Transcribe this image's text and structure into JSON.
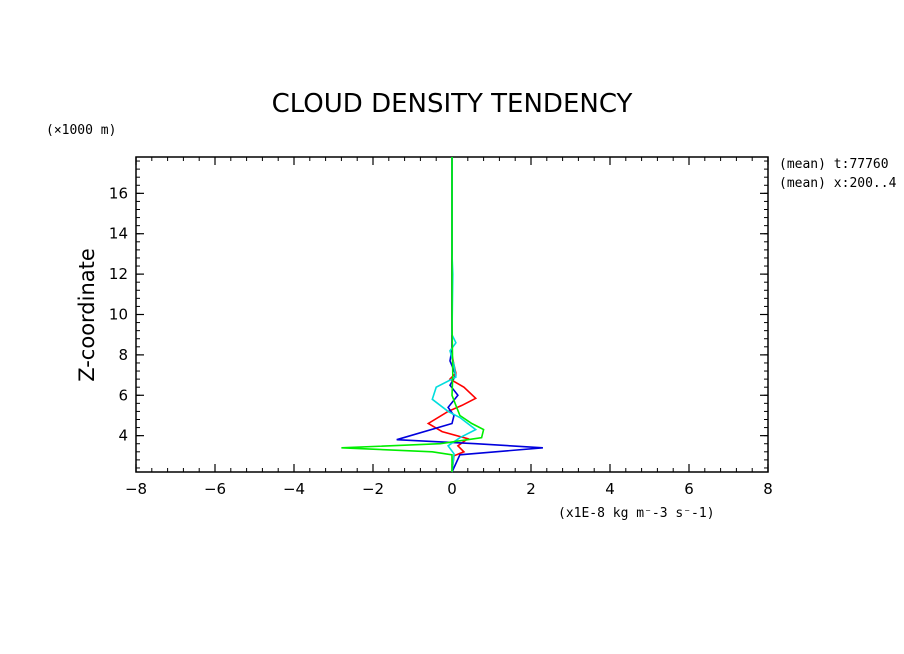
{
  "chart_data": {
    "type": "line",
    "title": "CLOUD DENSITY TENDENCY",
    "ylabel": "Z-coordinate",
    "y_unit": "(×1000 m)",
    "x_unit": "(x1E-8 kg m⁻-3 s⁻-1)",
    "annotations": [
      "(mean) t:77760",
      "(mean) x:200..4"
    ],
    "xlim": [
      -8,
      8
    ],
    "ylim": [
      2.2,
      17.8
    ],
    "x_ticks": [
      "-8",
      "-6",
      "-4",
      "-2",
      "0",
      "2",
      "4",
      "6",
      "8"
    ],
    "y_ticks": [
      "4",
      "6",
      "8",
      "10",
      "12",
      "14",
      "16"
    ],
    "series": [
      {
        "color": "#ff0000",
        "points": [
          [
            0,
            17.8
          ],
          [
            0,
            8.0
          ],
          [
            0.05,
            7.5
          ],
          [
            0.1,
            7.1
          ],
          [
            -0.05,
            6.8
          ],
          [
            0.3,
            6.4
          ],
          [
            0.6,
            5.85
          ],
          [
            0.25,
            5.5
          ],
          [
            -0.1,
            5.2
          ],
          [
            -0.6,
            4.6
          ],
          [
            -0.25,
            4.2
          ],
          [
            0.4,
            3.85
          ],
          [
            0.15,
            3.5
          ],
          [
            0.3,
            3.2
          ],
          [
            0.05,
            3.0
          ],
          [
            0,
            2.2
          ]
        ]
      },
      {
        "color": "#0000dd",
        "points": [
          [
            0,
            17.8
          ],
          [
            0,
            9.0
          ],
          [
            0.0,
            8.3
          ],
          [
            -0.05,
            7.7
          ],
          [
            0.1,
            7.0
          ],
          [
            -0.05,
            6.5
          ],
          [
            0.15,
            6.0
          ],
          [
            -0.1,
            5.4
          ],
          [
            0.05,
            5.0
          ],
          [
            0.0,
            4.6
          ],
          [
            -1.4,
            3.8
          ],
          [
            0.6,
            3.6
          ],
          [
            2.3,
            3.4
          ],
          [
            0.2,
            3.05
          ],
          [
            0,
            2.2
          ]
        ]
      },
      {
        "color": "#00dddd",
        "points": [
          [
            0,
            17.8
          ],
          [
            0,
            13.0
          ],
          [
            0.02,
            12.0
          ],
          [
            0.0,
            9.0
          ],
          [
            0.1,
            8.6
          ],
          [
            -0.05,
            8.2
          ],
          [
            0.05,
            7.5
          ],
          [
            0.1,
            6.9
          ],
          [
            -0.4,
            6.4
          ],
          [
            -0.5,
            5.8
          ],
          [
            -0.1,
            5.2
          ],
          [
            0.2,
            4.9
          ],
          [
            0.6,
            4.3
          ],
          [
            0.2,
            3.9
          ],
          [
            -0.1,
            3.5
          ],
          [
            0.05,
            3.1
          ],
          [
            0,
            2.2
          ]
        ]
      },
      {
        "color": "#00ee00",
        "points": [
          [
            0,
            17.8
          ],
          [
            0,
            9.5
          ],
          [
            0.02,
            7.0
          ],
          [
            0.0,
            6.0
          ],
          [
            0.1,
            5.5
          ],
          [
            0.2,
            5.0
          ],
          [
            0.5,
            4.6
          ],
          [
            0.8,
            4.3
          ],
          [
            0.75,
            3.9
          ],
          [
            -0.3,
            3.6
          ],
          [
            -2.8,
            3.4
          ],
          [
            -0.5,
            3.2
          ],
          [
            0.0,
            3.05
          ],
          [
            0,
            2.2
          ]
        ]
      }
    ]
  }
}
